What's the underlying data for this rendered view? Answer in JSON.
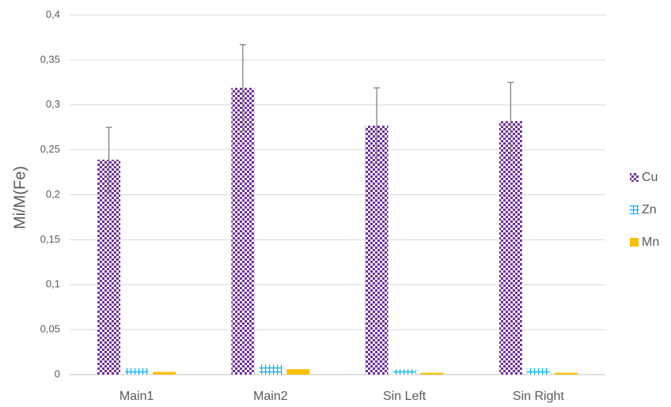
{
  "chart_data": {
    "type": "bar",
    "y_label": "Mi/M(Fe)",
    "categories": [
      "Main1",
      "Main2",
      "Sin Left",
      "Sin Right"
    ],
    "series": [
      {
        "name": "Cu",
        "color": "#7030a0",
        "pattern": "checker",
        "values": [
          0.239,
          0.319,
          0.277,
          0.282
        ],
        "errors": [
          0.036,
          0.048,
          0.042,
          0.043
        ]
      },
      {
        "name": "Zn",
        "color": "#00b0f0",
        "pattern": "grid",
        "values": [
          0.007,
          0.011,
          0.006,
          0.007
        ]
      },
      {
        "name": "Mn",
        "color": "#ffc000",
        "pattern": "solid",
        "values": [
          0.003,
          0.006,
          0.002,
          0.002
        ]
      }
    ],
    "ylim": [
      0,
      0.4
    ],
    "yticks": [
      0,
      {
        "value": 0.05,
        "label": "0,05"
      },
      {
        "value": 0.1,
        "label": "0,1"
      },
      {
        "value": 0.15,
        "label": "0,15"
      },
      {
        "value": 0.2,
        "label": "0,2"
      },
      {
        "value": 0.25,
        "label": "0,25"
      },
      {
        "value": 0.3,
        "label": "0,3"
      },
      {
        "value": 0.35,
        "label": "0,35"
      },
      {
        "value": 0.4,
        "label": "0,4"
      }
    ],
    "grid": true,
    "legend": "right"
  }
}
